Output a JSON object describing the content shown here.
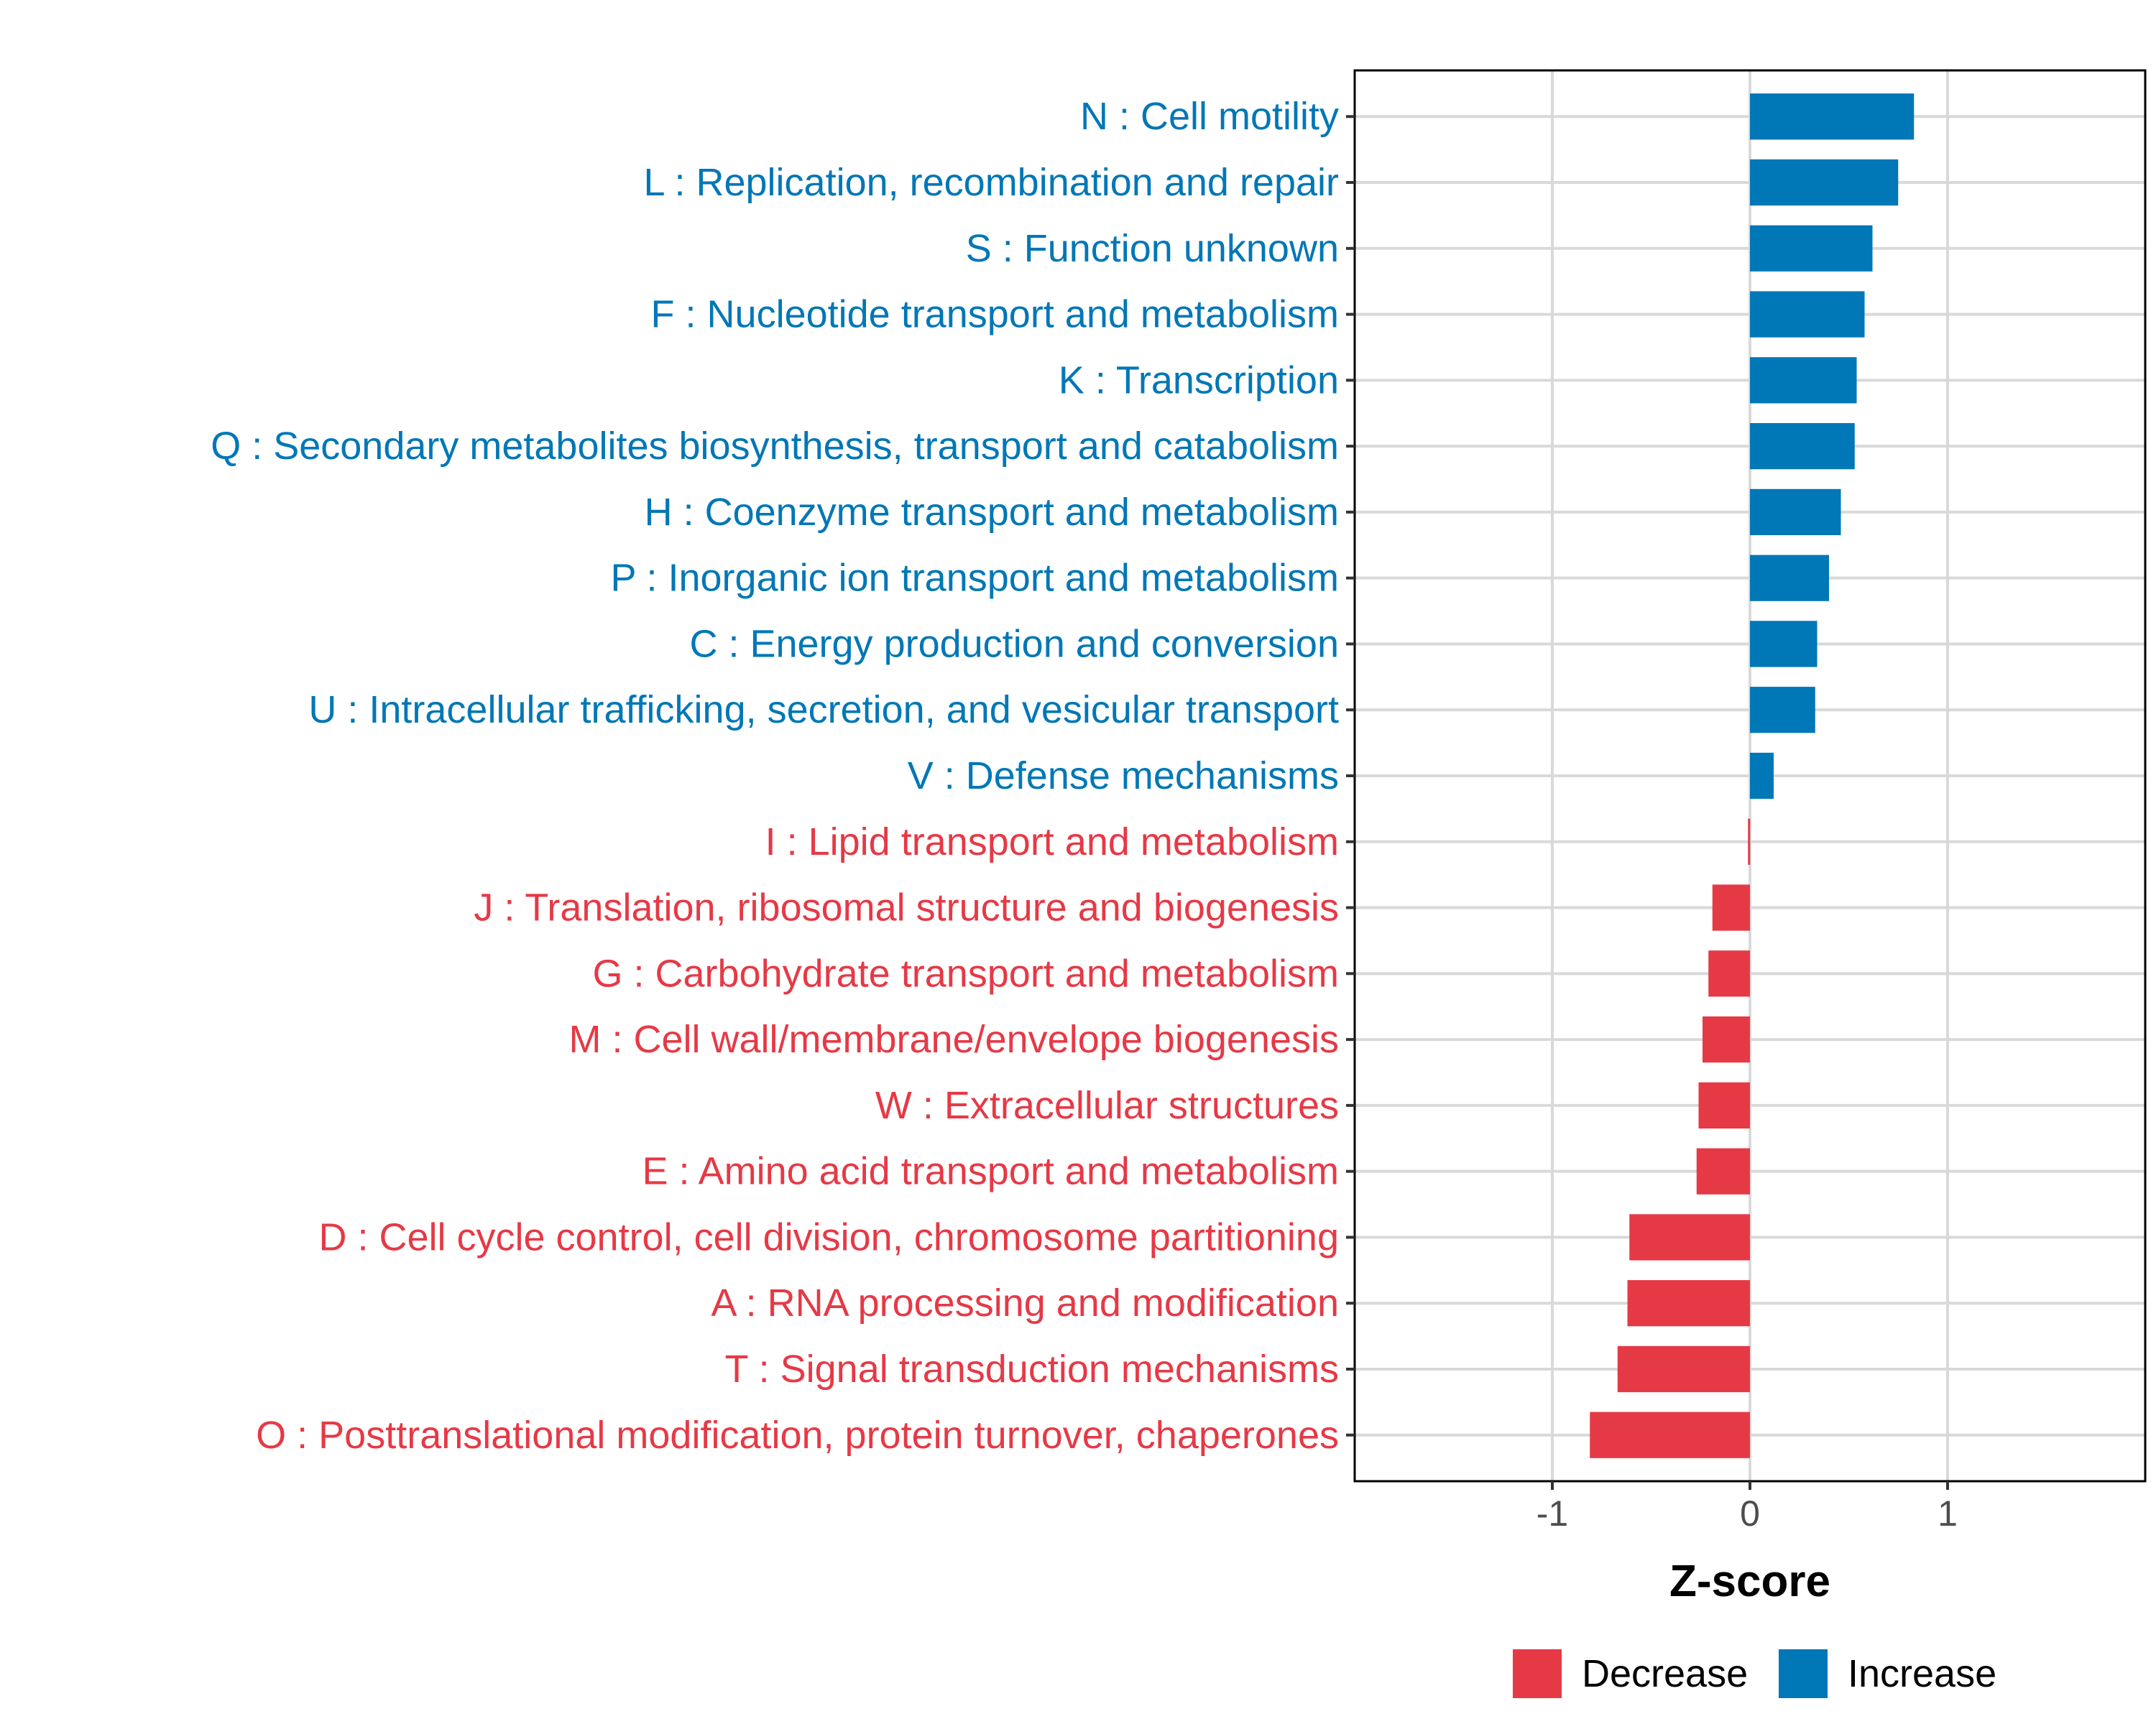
{
  "chart_data": {
    "type": "bar",
    "orientation": "horizontal",
    "title": "",
    "xlabel": "Z-score",
    "ylabel": "",
    "xlim": [
      -2.0,
      2.0
    ],
    "xticks": [
      -1,
      0,
      1
    ],
    "xtick_labels": [
      "-1",
      "0",
      "1"
    ],
    "grid": true,
    "legend_position": "bottom",
    "colors": {
      "Decrease": "#e63946",
      "Increase": "#0077b6"
    },
    "legend": [
      {
        "name": "Decrease",
        "color": "#e63946"
      },
      {
        "name": "Increase",
        "color": "#0077b6"
      }
    ],
    "categories": [
      "N : Cell motility",
      "L : Replication, recombination and repair",
      "S : Function unknown",
      "F : Nucleotide transport and metabolism",
      "K : Transcription",
      "Q : Secondary metabolites biosynthesis, transport and catabolism",
      "H : Coenzyme transport and metabolism",
      "P : Inorganic ion transport and metabolism",
      "C : Energy production and conversion",
      "U : Intracellular trafficking, secretion, and vesicular transport",
      "V : Defense mechanisms",
      "I : Lipid transport and metabolism",
      "J : Translation, ribosomal structure and biogenesis",
      "G : Carbohydrate transport and metabolism",
      "M : Cell wall/membrane/envelope biogenesis",
      "W : Extracellular structures",
      "E : Amino acid transport and metabolism",
      "D : Cell cycle control, cell division, chromosome partitioning",
      "A : RNA processing and modification",
      "T : Signal transduction mechanisms",
      "O : Posttranslational modification, protein turnover, chaperones"
    ],
    "values": [
      0.83,
      0.75,
      0.62,
      0.58,
      0.54,
      0.53,
      0.46,
      0.4,
      0.34,
      0.33,
      0.12,
      -0.01,
      -0.19,
      -0.21,
      -0.24,
      -0.26,
      -0.27,
      -0.61,
      -0.62,
      -0.67,
      -0.81
    ],
    "groups": [
      "Increase",
      "Increase",
      "Increase",
      "Increase",
      "Increase",
      "Increase",
      "Increase",
      "Increase",
      "Increase",
      "Increase",
      "Increase",
      "Decrease",
      "Decrease",
      "Decrease",
      "Decrease",
      "Decrease",
      "Decrease",
      "Decrease",
      "Decrease",
      "Decrease",
      "Decrease"
    ]
  }
}
